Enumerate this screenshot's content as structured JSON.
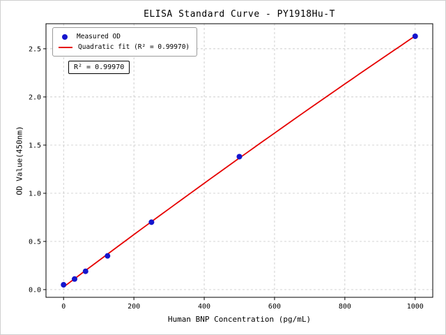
{
  "chart_data": {
    "type": "scatter",
    "title": "ELISA Standard Curve - PY1918Hu-T",
    "xlabel": "Human BNP Concentration (pg/mL)",
    "ylabel": "OD Value(450nm)",
    "annotation": "R² = 0.99970",
    "legend": {
      "position": "upper-left",
      "entries": [
        "Measured OD",
        "Quadratic fit (R² = 0.99970)"
      ]
    },
    "series": [
      {
        "name": "Measured OD",
        "type": "scatter",
        "x": [
          0,
          31.25,
          62.5,
          125,
          250,
          500,
          1000
        ],
        "y": [
          0.05,
          0.11,
          0.19,
          0.35,
          0.7,
          1.38,
          2.63
        ]
      },
      {
        "name": "Quadratic fit",
        "type": "line",
        "fit": "quadratic",
        "r_squared": "0.99970",
        "x_range": [
          0,
          1000
        ]
      }
    ],
    "x_ticks": [
      0,
      200,
      400,
      600,
      800,
      1000
    ],
    "x_tick_labels": [
      "0",
      "200",
      "400",
      "600",
      "800",
      "1000"
    ],
    "y_ticks": [
      0.0,
      0.5,
      1.0,
      1.5,
      2.0,
      2.5
    ],
    "y_tick_labels": [
      "0.0",
      "0.5",
      "1.0",
      "1.5",
      "2.0",
      "2.5"
    ],
    "xlim": [
      -50,
      1050
    ],
    "ylim": [
      -0.08,
      2.76
    ],
    "grid": true,
    "colors": {
      "points": "#1515cd",
      "fit_line": "#e60000",
      "grid": "#bdbdbd",
      "axis": "#000000"
    }
  }
}
